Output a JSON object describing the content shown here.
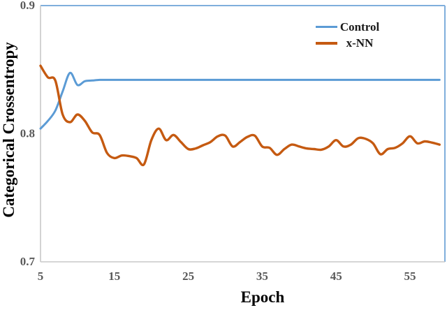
{
  "figure": {
    "background": "#ffffff"
  },
  "chart_data": {
    "type": "line",
    "title": "",
    "xlabel": "Epoch",
    "ylabel": "Categorical Crossentropy",
    "x_start": 5,
    "x_step": 1,
    "xlim": [
      5,
      60
    ],
    "ylim": [
      0.7,
      0.9
    ],
    "grid": false,
    "legend_position": "top-right",
    "x_ticks": [
      {
        "v": 5,
        "label": "5"
      },
      {
        "v": 15,
        "label": "15"
      },
      {
        "v": 25,
        "label": "25"
      },
      {
        "v": 35,
        "label": "35"
      },
      {
        "v": 45,
        "label": "45"
      },
      {
        "v": 55,
        "label": "55"
      }
    ],
    "y_ticks": [
      {
        "v": 0.9,
        "label": "0.9"
      },
      {
        "v": 0.8,
        "label": "0.8"
      },
      {
        "v": 0.7,
        "label": "0.7"
      }
    ],
    "colors": {
      "plot_border": "#7faedc",
      "axis_line": "#c8c8c8",
      "tick_label": "#595959",
      "title_text": "#000000"
    },
    "series": [
      {
        "name": "Control",
        "color": "#5b9bd5",
        "values": [
          0.804,
          0.81,
          0.818,
          0.833,
          0.8475,
          0.838,
          0.841,
          0.8415,
          0.842,
          0.842,
          0.842,
          0.842,
          0.842,
          0.842,
          0.842,
          0.842,
          0.842,
          0.842,
          0.842,
          0.842,
          0.842,
          0.842,
          0.842,
          0.842,
          0.842,
          0.842,
          0.842,
          0.842,
          0.842,
          0.842,
          0.842,
          0.842,
          0.842,
          0.842,
          0.842,
          0.842,
          0.842,
          0.842,
          0.842,
          0.842,
          0.842,
          0.842,
          0.842,
          0.842,
          0.842,
          0.842,
          0.842,
          0.842,
          0.842,
          0.842,
          0.842,
          0.842,
          0.842,
          0.842,
          0.842
        ]
      },
      {
        "name": "x-NN",
        "color": "#c55a11",
        "values": [
          0.853,
          0.844,
          0.8415,
          0.815,
          0.809,
          0.815,
          0.81,
          0.801,
          0.799,
          0.785,
          0.781,
          0.783,
          0.7825,
          0.781,
          0.776,
          0.795,
          0.804,
          0.795,
          0.799,
          0.7935,
          0.788,
          0.7885,
          0.791,
          0.7935,
          0.798,
          0.7985,
          0.79,
          0.7935,
          0.7975,
          0.7985,
          0.79,
          0.789,
          0.7835,
          0.788,
          0.7915,
          0.79,
          0.7885,
          0.788,
          0.7875,
          0.79,
          0.795,
          0.79,
          0.7915,
          0.7965,
          0.796,
          0.7925,
          0.784,
          0.788,
          0.789,
          0.7925,
          0.798,
          0.7925,
          0.794,
          0.793,
          0.7915
        ]
      }
    ]
  }
}
